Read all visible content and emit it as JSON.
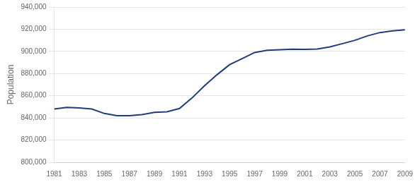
{
  "chart_data": {
    "type": "line",
    "x": [
      1981,
      1982,
      1983,
      1984,
      1985,
      1986,
      1987,
      1988,
      1989,
      1990,
      1991,
      1992,
      1993,
      1994,
      1995,
      1996,
      1997,
      1998,
      1999,
      2000,
      2001,
      2002,
      2003,
      2004,
      2005,
      2006,
      2007,
      2008,
      2009
    ],
    "values": [
      848000,
      849500,
      849000,
      848000,
      844000,
      842000,
      842000,
      843000,
      845000,
      845500,
      848500,
      858000,
      869000,
      879000,
      888000,
      893500,
      899000,
      901000,
      901500,
      902000,
      901800,
      902200,
      904000,
      907000,
      910000,
      914000,
      917000,
      918500,
      919500
    ],
    "color": "#1F3D7C",
    "ylabel": "Population",
    "xlim": [
      1981,
      2009
    ],
    "xticks": [
      1981,
      1983,
      1985,
      1987,
      1989,
      1991,
      1993,
      1995,
      1997,
      1999,
      2001,
      2003,
      2005,
      2007,
      2009
    ],
    "ylim": [
      800000,
      940000
    ],
    "yticks": [
      {
        "value": 800000,
        "label": "800,000"
      },
      {
        "value": 820000,
        "label": "820,000"
      },
      {
        "value": 840000,
        "label": "840,000"
      },
      {
        "value": 860000,
        "label": "860,000"
      },
      {
        "value": 880000,
        "label": "880,000"
      },
      {
        "value": 900000,
        "label": "900,000"
      },
      {
        "value": 920000,
        "label": "920,000"
      },
      {
        "value": 940000,
        "label": "940,000"
      }
    ],
    "grid": "y"
  }
}
